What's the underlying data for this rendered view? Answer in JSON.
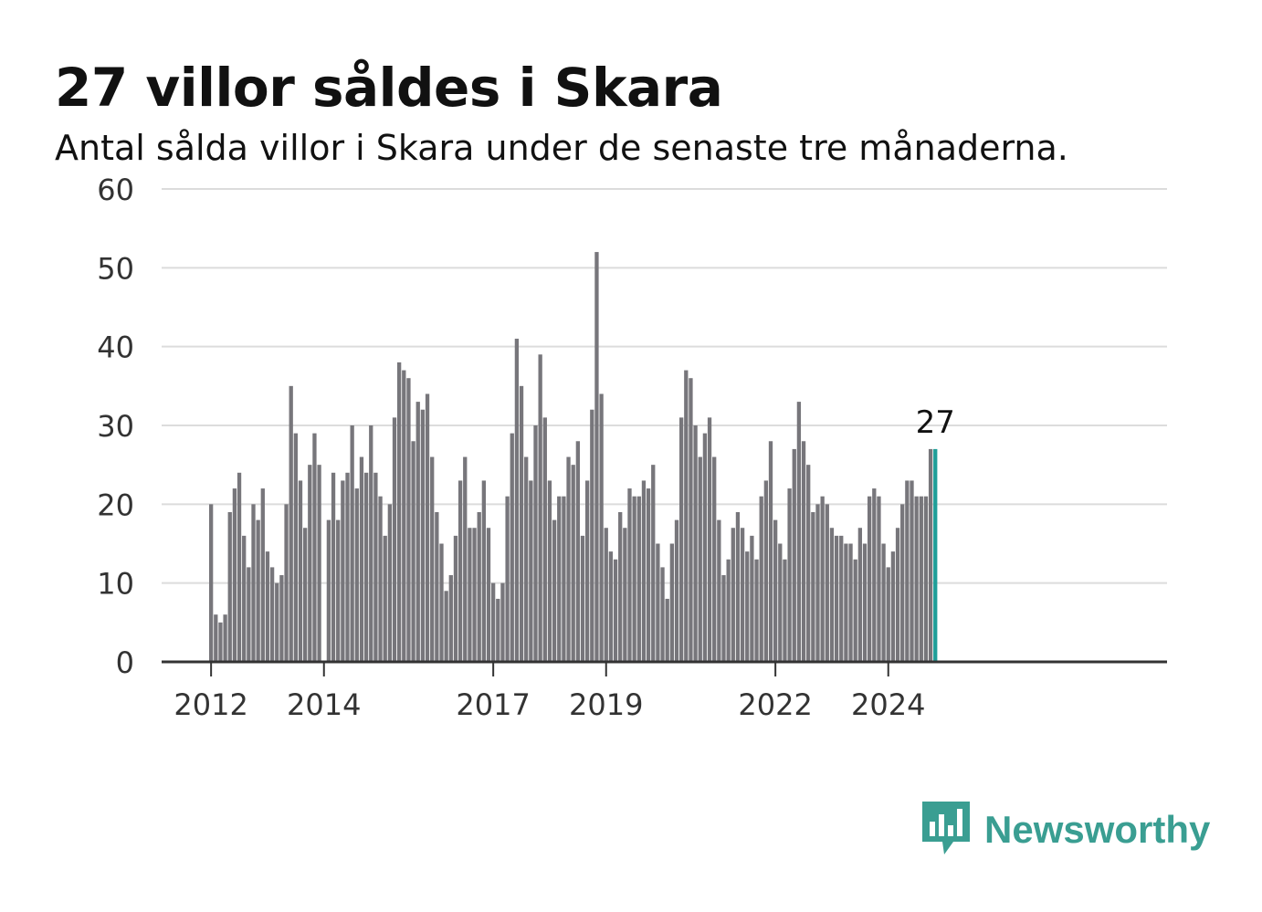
{
  "header": {
    "title": "27 villor såldes i Skara",
    "subtitle": "Antal sålda villor i Skara under de senaste tre månaderna."
  },
  "brand": {
    "name": "Newsworthy",
    "icon": "bar-chart-speech-icon",
    "color": "#3a9e92"
  },
  "colors": {
    "bar": "#77767b",
    "highlight": "#1f9e98",
    "grid": "#dcdcdc",
    "axis": "#333333"
  },
  "chart_data": {
    "type": "bar",
    "title": "27 villor såldes i Skara",
    "subtitle": "Antal sålda villor i Skara under de senaste tre månaderna.",
    "xlabel": "",
    "ylabel": "",
    "ylim": [
      0,
      60
    ],
    "yticks": [
      0,
      10,
      20,
      30,
      40,
      50,
      60
    ],
    "xticks": [
      "2012",
      "2014",
      "2017",
      "2019",
      "2022",
      "2024"
    ],
    "grid": true,
    "x_start": "2012-01",
    "x_end": "2024-12",
    "values": [
      20,
      6,
      5,
      6,
      19,
      22,
      24,
      16,
      12,
      20,
      18,
      22,
      14,
      12,
      10,
      11,
      20,
      35,
      29,
      23,
      17,
      25,
      29,
      25,
      0,
      18,
      24,
      18,
      23,
      24,
      30,
      22,
      26,
      24,
      30,
      24,
      21,
      16,
      20,
      31,
      38,
      37,
      36,
      28,
      33,
      32,
      34,
      26,
      19,
      15,
      9,
      11,
      16,
      23,
      26,
      17,
      17,
      19,
      23,
      17,
      10,
      8,
      10,
      21,
      29,
      41,
      35,
      26,
      23,
      30,
      39,
      31,
      23,
      18,
      21,
      21,
      26,
      25,
      28,
      16,
      23,
      32,
      52,
      34,
      17,
      14,
      13,
      19,
      17,
      22,
      21,
      21,
      23,
      22,
      25,
      15,
      12,
      8,
      15,
      18,
      31,
      37,
      36,
      30,
      26,
      29,
      31,
      26,
      18,
      11,
      13,
      17,
      19,
      17,
      14,
      16,
      13,
      21,
      23,
      28,
      18,
      15,
      13,
      22,
      27,
      33,
      28,
      25,
      19,
      20,
      21,
      20,
      17,
      16,
      16,
      15,
      15,
      13,
      17,
      15,
      21,
      22,
      21,
      15,
      12,
      14,
      17,
      20,
      23,
      23,
      21,
      21,
      21,
      27,
      27
    ],
    "highlight_last": true,
    "annotation": {
      "label": "27",
      "value": 27
    }
  }
}
